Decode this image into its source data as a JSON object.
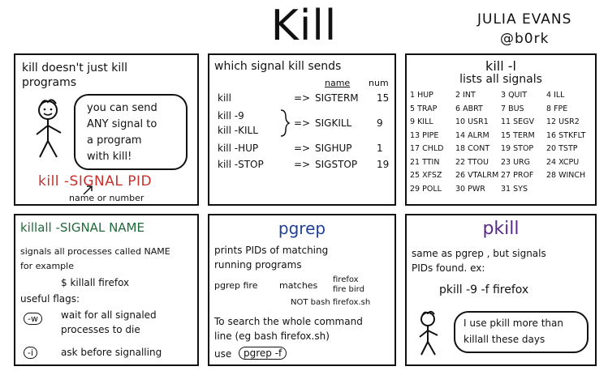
{
  "header": {
    "title": "Kill",
    "author_name": "JULIA EVANS",
    "author_handle": "@b0rk"
  },
  "panel1": {
    "line1": "kill doesn't just kill",
    "line2": "programs",
    "bubble_lines": [
      "you can send",
      "ANY signal to",
      "a program",
      "with kill!"
    ],
    "command": "kill -SIGNAL PID",
    "note": "name or number"
  },
  "panel2": {
    "title": "which signal kill sends",
    "col_name": "name",
    "col_num": "num",
    "rows": [
      {
        "cmd": "kill",
        "arrow": "=>",
        "name": "SIGTERM",
        "num": "15"
      },
      {
        "cmd": "kill -9",
        "arrow": "",
        "name": "",
        "num": ""
      },
      {
        "cmd": "kill -KILL",
        "arrow": "=>",
        "name": "SIGKILL",
        "num": "9"
      },
      {
        "cmd": "kill -HUP",
        "arrow": "=>",
        "name": "SIGHUP",
        "num": "1"
      },
      {
        "cmd": "kill -STOP",
        "arrow": "=>",
        "name": "SIGSTOP",
        "num": "19"
      }
    ]
  },
  "panel3": {
    "title": "kill -l",
    "subtitle": "lists all signals",
    "signals": [
      [
        "1 HUP",
        "2 INT",
        "3 QUIT",
        "4 ILL"
      ],
      [
        "5 TRAP",
        "6 ABRT",
        "7 BUS",
        "8 FPE"
      ],
      [
        "9 KILL",
        "10 USR1",
        "11 SEGV",
        "12 USR2"
      ],
      [
        "13 PIPE",
        "14 ALRM",
        "15 TERM",
        "16 STKFLT"
      ],
      [
        "17 CHLD",
        "18 CONT",
        "19 STOP",
        "20 TSTP"
      ],
      [
        "21 TTIN",
        "22 TTOU",
        "23 URG",
        "24 XCPU"
      ],
      [
        "25 XFSZ",
        "26 VTALRM",
        "27 PROF",
        "28 WINCH"
      ],
      [
        "29 POLL",
        "30 PWR",
        "31 SYS",
        ""
      ]
    ]
  },
  "panel4": {
    "title": "killall -SIGNAL NAME",
    "line1": "signals all processes called NAME",
    "line2": "for example",
    "example": "$ killall firefox",
    "flags_label": "useful flags:",
    "flag_w": "-w",
    "flag_w_desc1": "wait for all signaled",
    "flag_w_desc2": "processes to die",
    "flag_i": "-i",
    "flag_i_desc": "ask before signalling"
  },
  "panel5": {
    "title": "pgrep",
    "line1": "prints PIDs of matching",
    "line2": "running programs",
    "example_cmd": "pgrep fire",
    "matches": "matches",
    "match1": "firefox",
    "match2": "fire bird",
    "not_match": "NOT bash firefox.sh",
    "search1": "To search the whole command",
    "search2": "line (eg bash firefox.sh)",
    "use": "use",
    "use_cmd": "pgrep -f"
  },
  "panel6": {
    "title": "pkill",
    "line1": "same as pgrep , but signals",
    "line2": "PIDs found. ex:",
    "example": "pkill -9 -f firefox",
    "bubble1": "I use pkill more than",
    "bubble2": "killall these days"
  }
}
